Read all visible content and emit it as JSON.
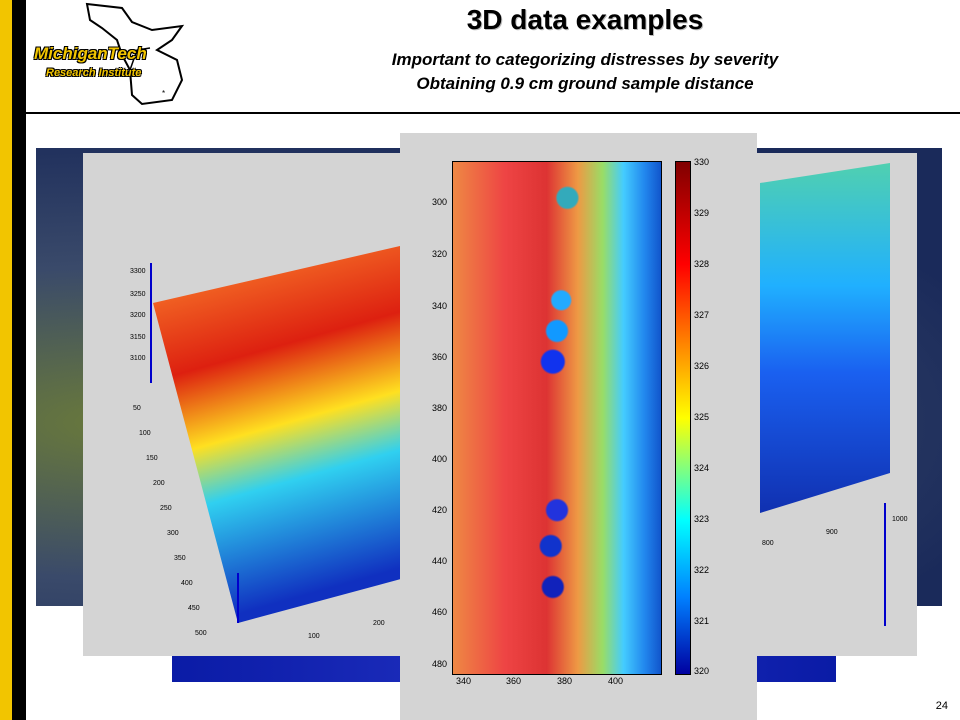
{
  "header": {
    "title": "3D data examples",
    "subtitle1": "Important to categorizing distresses by severity",
    "subtitle2": "Obtaining 0.9 cm ground sample distance"
  },
  "logo": {
    "line1": "MichiganTech",
    "line2": "Research Institute"
  },
  "page_number": "24",
  "center_plot": {
    "y_ticks": [
      "300",
      "320",
      "340",
      "360",
      "380",
      "400",
      "420",
      "440",
      "460",
      "480"
    ],
    "x_ticks": [
      "340",
      "360",
      "380",
      "400"
    ],
    "colorbar_ticks": [
      "330",
      "329",
      "328",
      "327",
      "326",
      "325",
      "324",
      "323",
      "322",
      "321",
      "320"
    ]
  },
  "left_plot": {
    "z_ticks": [
      "3300",
      "3250",
      "3200",
      "3150",
      "3100"
    ],
    "y_ticks": [
      "50",
      "100",
      "150",
      "200",
      "250",
      "300",
      "350",
      "400",
      "450",
      "500"
    ],
    "x_ticks": [
      "100",
      "200"
    ]
  },
  "right_plot": {
    "x_ticks": [
      "800",
      "900",
      "1000"
    ]
  },
  "colors": {
    "accent_yellow": "#f2c500",
    "black": "#000000"
  }
}
